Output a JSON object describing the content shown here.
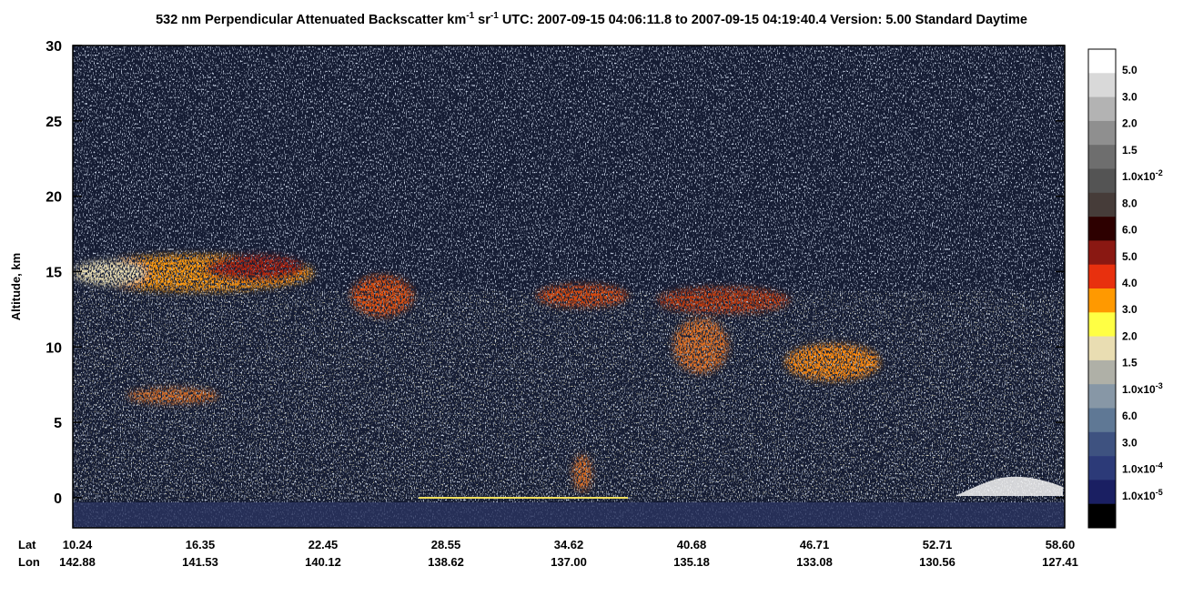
{
  "chart_data": {
    "type": "heatmap",
    "title": [
      {
        "text": "532 nm Perpendicular Attenuated Backscatter km"
      },
      {
        "text": "-1",
        "sup": true
      },
      {
        "text": " sr"
      },
      {
        "text": "-1",
        "sup": true
      },
      {
        "text": "  UTC: 2007-09-15 04:06:11.8 to 2007-09-15 04:19:40.4  Version: 5.00 Standard Daytime"
      }
    ],
    "ylabel": "Altitude, km",
    "ylim": [
      -2,
      30
    ],
    "yticks": [
      0,
      5,
      10,
      15,
      20,
      25,
      30
    ],
    "x_row_labels": [
      "Lat",
      "Lon"
    ],
    "lat": [
      "10.24",
      "16.35",
      "22.45",
      "28.55",
      "34.62",
      "40.68",
      "46.71",
      "52.71",
      "58.60"
    ],
    "lon": [
      "142.88",
      "141.53",
      "140.12",
      "138.62",
      "137.00",
      "135.18",
      "133.08",
      "130.56",
      "127.41"
    ],
    "colorbar": {
      "colors": [
        "#ffffff",
        "#d9d9d9",
        "#b3b3b3",
        "#8f8f8f",
        "#6e6e6e",
        "#545454",
        "#463c39",
        "#2d0000",
        "#8a1812",
        "#e8300e",
        "#ff9900",
        "#ffff44",
        "#e9ddb2",
        "#afb0a7",
        "#8797a6",
        "#5f7895",
        "#3e5280",
        "#2c3a78",
        "#1a1f62",
        "#000000"
      ],
      "labels": [
        {
          "text": "5.0"
        },
        {
          "text": "3.0"
        },
        {
          "text": "2.0"
        },
        {
          "text": "1.5"
        },
        {
          "text": "1.0x10",
          "exp": "-2"
        },
        {
          "text": "8.0"
        },
        {
          "text": "6.0"
        },
        {
          "text": "5.0"
        },
        {
          "text": "4.0"
        },
        {
          "text": "3.0"
        },
        {
          "text": "2.0"
        },
        {
          "text": "1.5"
        },
        {
          "text": "1.0x10",
          "exp": "-3"
        },
        {
          "text": "6.0"
        },
        {
          "text": "3.0"
        },
        {
          "text": "1.0x10",
          "exp": "-4"
        },
        {
          "text": "1.0x10",
          "exp": "-5"
        }
      ]
    }
  }
}
